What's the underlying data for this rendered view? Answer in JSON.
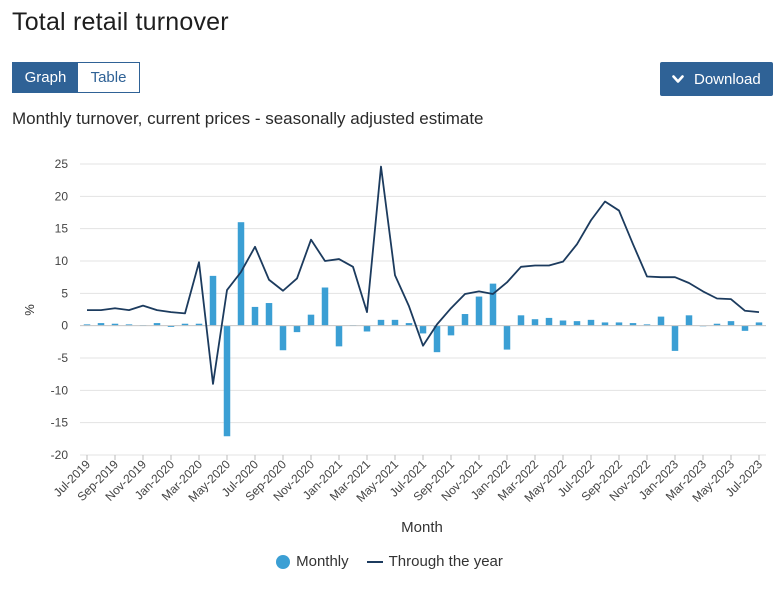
{
  "page": {
    "title": "Total retail turnover",
    "tabs": {
      "graph": "Graph",
      "table": "Table"
    },
    "download_label": "Download",
    "subtitle": "Monthly turnover, current prices - seasonally adjusted estimate"
  },
  "legend": {
    "monthly": "Monthly",
    "through_year": "Through the year"
  },
  "colors": {
    "bar": "#3b9fd4",
    "line": "#1c3b5e",
    "accent": "#2f6296"
  },
  "chart_data": {
    "type": "bar",
    "xlabel": "Month",
    "ylabel": "%",
    "ylim": [
      -20,
      25
    ],
    "yticks": [
      25,
      20,
      15,
      10,
      5,
      0,
      -5,
      -10,
      -15,
      -20
    ],
    "grid": true,
    "legend_position": "bottom",
    "x_tick_labels": [
      "Jul-2019",
      "Sep-2019",
      "Nov-2019",
      "Jan-2020",
      "Mar-2020",
      "May-2020",
      "Jul-2020",
      "Sep-2020",
      "Nov-2020",
      "Jan-2021",
      "Mar-2021",
      "May-2021",
      "Jul-2021",
      "Sep-2021",
      "Nov-2021",
      "Jan-2022",
      "Mar-2022",
      "May-2022",
      "Jul-2022",
      "Sep-2022",
      "Nov-2022",
      "Jan-2023",
      "Mar-2023",
      "May-2023",
      "Jul-2023"
    ],
    "categories": [
      "Jul-2019",
      "Aug-2019",
      "Sep-2019",
      "Oct-2019",
      "Nov-2019",
      "Dec-2019",
      "Jan-2020",
      "Feb-2020",
      "Mar-2020",
      "Apr-2020",
      "May-2020",
      "Jun-2020",
      "Jul-2020",
      "Aug-2020",
      "Sep-2020",
      "Oct-2020",
      "Nov-2020",
      "Dec-2020",
      "Jan-2021",
      "Feb-2021",
      "Mar-2021",
      "Apr-2021",
      "May-2021",
      "Jun-2021",
      "Jul-2021",
      "Aug-2021",
      "Sep-2021",
      "Oct-2021",
      "Nov-2021",
      "Dec-2021",
      "Jan-2022",
      "Feb-2022",
      "Mar-2022",
      "Apr-2022",
      "May-2022",
      "Jun-2022",
      "Jul-2022",
      "Aug-2022",
      "Sep-2022",
      "Oct-2022",
      "Nov-2022",
      "Dec-2022",
      "Jan-2023",
      "Feb-2023",
      "Mar-2023",
      "Apr-2023",
      "May-2023",
      "Jun-2023",
      "Jul-2023"
    ],
    "series": [
      {
        "name": "Monthly",
        "type": "bar",
        "values": [
          0.2,
          0.4,
          0.3,
          0.2,
          0.1,
          0.4,
          -0.2,
          0.3,
          0.3,
          7.7,
          -17.1,
          16.0,
          2.9,
          3.5,
          -3.8,
          -1.0,
          1.7,
          5.9,
          -3.2,
          0.1,
          -0.9,
          0.9,
          0.9,
          0.4,
          -1.2,
          -4.1,
          -1.5,
          1.8,
          4.5,
          6.5,
          -3.7,
          1.6,
          1.0,
          1.2,
          0.8,
          0.7,
          0.9,
          0.5,
          0.5,
          0.4,
          0.2,
          1.4,
          -3.9,
          1.6,
          -0.1,
          0.3,
          0.7,
          -0.8,
          0.5
        ]
      },
      {
        "name": "Through the year",
        "type": "line",
        "values": [
          2.4,
          2.4,
          2.7,
          2.4,
          3.1,
          2.4,
          2.1,
          1.9,
          9.8,
          -9.0,
          5.5,
          8.3,
          12.2,
          7.1,
          5.4,
          7.3,
          13.3,
          10.0,
          10.3,
          9.1,
          2.1,
          24.6,
          7.8,
          3.0,
          -3.1,
          0.2,
          2.7,
          4.9,
          5.3,
          4.9,
          6.7,
          9.1,
          9.3,
          9.3,
          9.9,
          12.6,
          16.3,
          19.2,
          17.8,
          12.6,
          7.6,
          7.5,
          7.5,
          6.6,
          5.3,
          4.2,
          4.1,
          2.3,
          2.1
        ]
      }
    ]
  }
}
